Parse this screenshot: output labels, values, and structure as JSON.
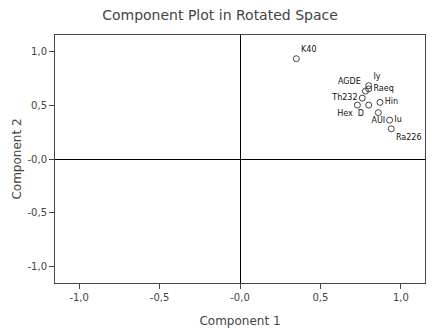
{
  "chart_data": {
    "type": "scatter",
    "title": "Component Plot in Rotated Space",
    "xlabel": "Component 1",
    "ylabel": "Component 2",
    "x": [
      0.35,
      0.8,
      0.8,
      0.78,
      0.76,
      0.87,
      0.73,
      0.8,
      0.86,
      0.93,
      0.94
    ],
    "values": [
      0.93,
      0.68,
      0.65,
      0.63,
      0.565,
      0.525,
      0.5,
      0.5,
      0.43,
      0.36,
      0.28
    ],
    "labels": [
      "K40",
      "Iy",
      "Raeq",
      "AGDE",
      "Th232",
      "Hin",
      "Hex",
      "D",
      "AUI",
      "Iu",
      "Ra226"
    ],
    "marker": "circle-open",
    "color": "#444444",
    "xlim": [
      -1.15,
      1.15
    ],
    "ylim": [
      -1.15,
      1.15
    ],
    "xticks": [
      {
        "value": -1.0,
        "label": "-1,0"
      },
      {
        "value": -0.5,
        "label": "-0,5"
      },
      {
        "value": 0.0,
        "label": "-0,0"
      },
      {
        "value": 0.5,
        "label": "0,5"
      },
      {
        "value": 1.0,
        "label": "1,0"
      }
    ],
    "yticks": [
      {
        "value": -1.0,
        "label": "-1,0"
      },
      {
        "value": -0.5,
        "label": "-0,5"
      },
      {
        "value": 0.0,
        "label": "-0,0"
      },
      {
        "value": 0.5,
        "label": "0,5"
      },
      {
        "value": 1.0,
        "label": "1,0"
      }
    ],
    "grid": false
  }
}
